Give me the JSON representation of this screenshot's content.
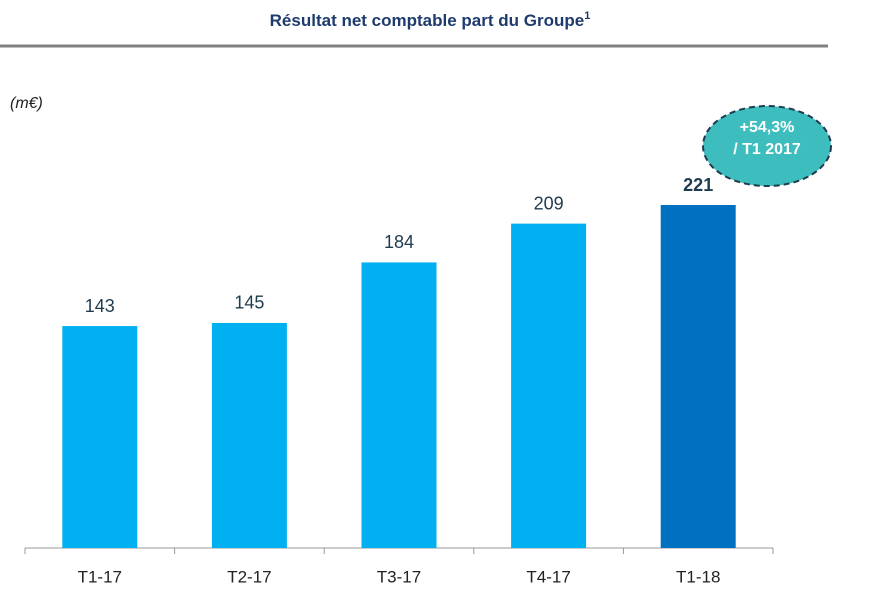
{
  "chart_data": {
    "type": "bar",
    "title": "Résultat net comptable part du Groupe",
    "title_superscript": "1",
    "unit_label": "(m€)",
    "annotation": [
      "+54,3%",
      "/ T1 2017"
    ],
    "categories": [
      "T1-17",
      "T2-17",
      "T3-17",
      "T4-17",
      "T1-18"
    ],
    "values": [
      143,
      145,
      184,
      209,
      221
    ],
    "colors": [
      "#00b0f0",
      "#00b0f0",
      "#00b0f0",
      "#00b0f0",
      "#0070c0"
    ],
    "highlight_index": 4
  }
}
